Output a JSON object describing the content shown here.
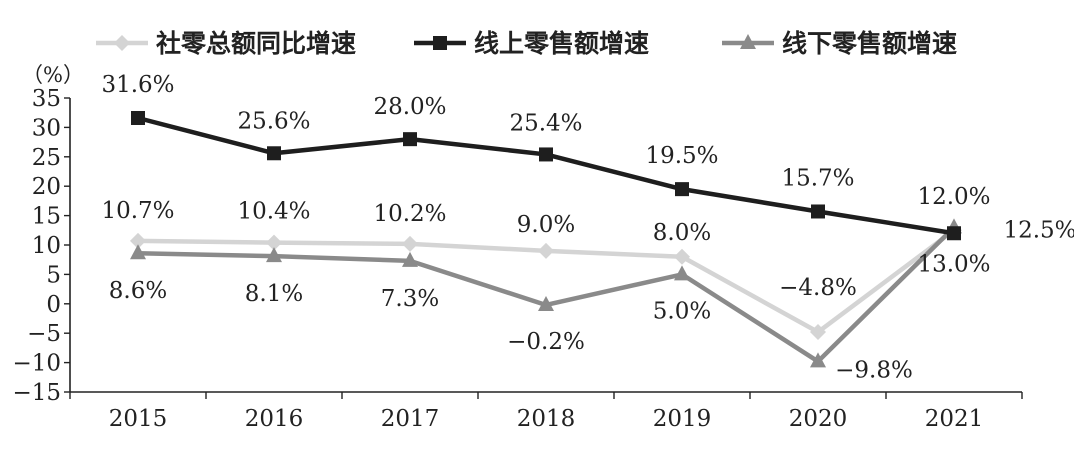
{
  "chart_data": {
    "type": "line",
    "y_unit_label": "（%）",
    "categories": [
      "2015",
      "2016",
      "2017",
      "2018",
      "2019",
      "2020",
      "2021"
    ],
    "ylim": [
      -15,
      35
    ],
    "yticks": [
      35,
      30,
      25,
      20,
      15,
      10,
      5,
      0,
      -5,
      -10,
      -15
    ],
    "ytick_labels": [
      "35",
      "30",
      "25",
      "20",
      "15",
      "10",
      "5",
      "0",
      "−5",
      "−10",
      "−15"
    ],
    "grid": false,
    "legend_position": "top",
    "series": [
      {
        "name": "社零总额同比增速",
        "values": [
          10.7,
          10.4,
          10.2,
          9.0,
          8.0,
          -4.8,
          12.5
        ],
        "labels": [
          "10.7%",
          "10.4%",
          "10.2%",
          "9.0%",
          "8.0%",
          "−4.8%",
          "12.5%"
        ],
        "color": "#d4d4d4",
        "marker": "diamond"
      },
      {
        "name": "线上零售额增速",
        "values": [
          31.6,
          25.6,
          28.0,
          25.4,
          19.5,
          15.7,
          12.0
        ],
        "labels": [
          "31.6%",
          "25.6%",
          "28.0%",
          "25.4%",
          "19.5%",
          "15.7%",
          "12.0%"
        ],
        "color": "#1e1e1e",
        "marker": "square"
      },
      {
        "name": "线下零售额增速",
        "values": [
          8.6,
          8.1,
          7.3,
          -0.2,
          5.0,
          -9.8,
          13.0
        ],
        "labels": [
          "8.6%",
          "8.1%",
          "7.3%",
          "−0.2%",
          "5.0%",
          "−9.8%",
          "13.0%"
        ],
        "color": "#8a8a8a",
        "marker": "triangle"
      }
    ]
  }
}
